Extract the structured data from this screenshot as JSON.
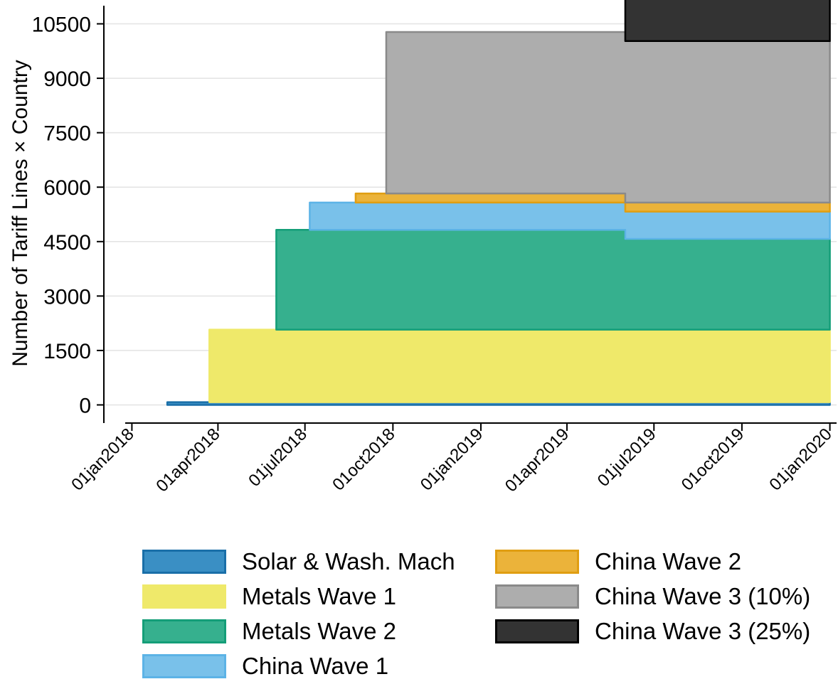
{
  "chart_data": {
    "type": "area",
    "stacked": true,
    "title": "",
    "xlabel": "",
    "ylabel": "Number of Tariff Lines × Country",
    "ylim": [
      -500,
      11000
    ],
    "yticks": [
      0,
      1500,
      3000,
      4500,
      6000,
      7500,
      9000,
      10500
    ],
    "ytick_labels": [
      "0",
      "1500",
      "3000",
      "4500",
      "6000",
      "7500",
      "9000",
      "10500"
    ],
    "xlim": [
      "2017-12-25",
      "2020-01-08"
    ],
    "xticks": [
      "2018-01-01",
      "2018-04-01",
      "2018-07-01",
      "2018-10-01",
      "2019-01-01",
      "2019-04-01",
      "2019-07-01",
      "2019-10-01",
      "2020-01-01"
    ],
    "xtick_labels": [
      "01jan2018",
      "01apr2018",
      "01jul2018",
      "01oct2018",
      "01jan2019",
      "01apr2019",
      "01jul2019",
      "01oct2019",
      "01jan2020"
    ],
    "grid": "horizontal",
    "legend_position": "bottom",
    "x_end": "2020-01-01",
    "series": [
      {
        "name": "Solar & Wash. Mach",
        "color": "#1a6fa8",
        "fill": "#3a8fc4",
        "start": "2018-02-07",
        "segments": [
          {
            "from": "2018-02-07",
            "value": 75
          }
        ]
      },
      {
        "name": "Metals Wave 1",
        "color": "#efe96a",
        "fill": "#efe96a",
        "start": "2018-03-23",
        "segments": [
          {
            "from": "2018-03-23",
            "value": 2000
          }
        ]
      },
      {
        "name": "Metals Wave 2",
        "color": "#149e78",
        "fill": "#36b08e",
        "start": "2018-06-01",
        "segments": [
          {
            "from": "2018-06-01",
            "value": 2750
          },
          {
            "from": "2019-06-01",
            "value": 2500
          }
        ]
      },
      {
        "name": "China Wave 1",
        "color": "#5cb3e6",
        "fill": "#79c1ea",
        "start": "2018-07-06",
        "segments": [
          {
            "from": "2018-07-06",
            "value": 750
          }
        ]
      },
      {
        "name": "China Wave 2",
        "color": "#e09e12",
        "fill": "#ebb33a",
        "start": "2018-08-23",
        "segments": [
          {
            "from": "2018-08-23",
            "value": 250
          }
        ]
      },
      {
        "name": "China Wave 3 (10%)",
        "color": "#8a8a8a",
        "fill": "#adadad",
        "start": "2018-09-24",
        "segments": [
          {
            "from": "2018-09-24",
            "value": 4450
          }
        ]
      },
      {
        "name": "China Wave 3 (25%)",
        "color": "#000000",
        "fill": "#333333",
        "start": "2019-06-01",
        "segments": [
          {
            "from": "2019-06-01",
            "value": 4450
          }
        ]
      }
    ]
  }
}
